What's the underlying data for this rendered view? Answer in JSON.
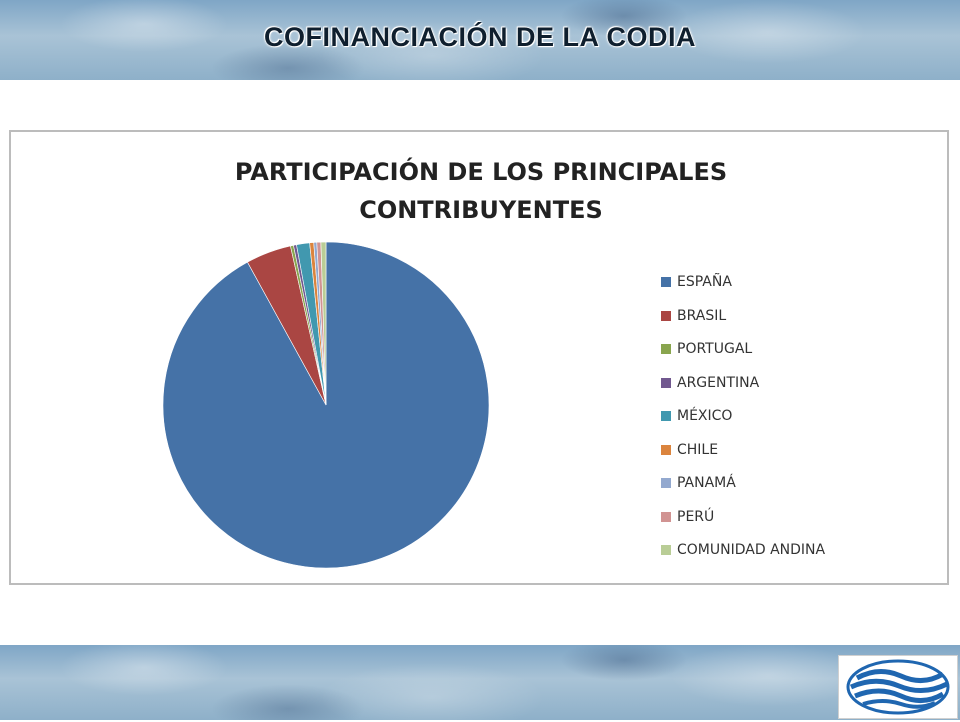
{
  "slide": {
    "title": "COFINANCIACIÓN DE LA CODIA"
  },
  "chart_data": {
    "type": "pie",
    "title_lines": [
      "PARTICIPACIÓN DE LOS PRINCIPALES",
      "CONTRIBUYENTES"
    ],
    "legend_position": "right",
    "categories": [
      "ESPAÑA",
      "BRASIL",
      "PORTUGAL",
      "ARGENTINA",
      "MÉXICO",
      "CHILE",
      "PANAMÁ",
      "PERÚ",
      "COMUNIDAD ANDINA"
    ],
    "values": [
      92.0,
      4.5,
      0.3,
      0.3,
      1.3,
      0.4,
      0.3,
      0.4,
      0.5
    ],
    "colors": [
      "#4572A7",
      "#AA4643",
      "#89A54E",
      "#71588F",
      "#4198AF",
      "#DB843D",
      "#93A9CF",
      "#D19392",
      "#B9CD96"
    ]
  },
  "logo": {
    "icon": "codia-wave-logo"
  }
}
